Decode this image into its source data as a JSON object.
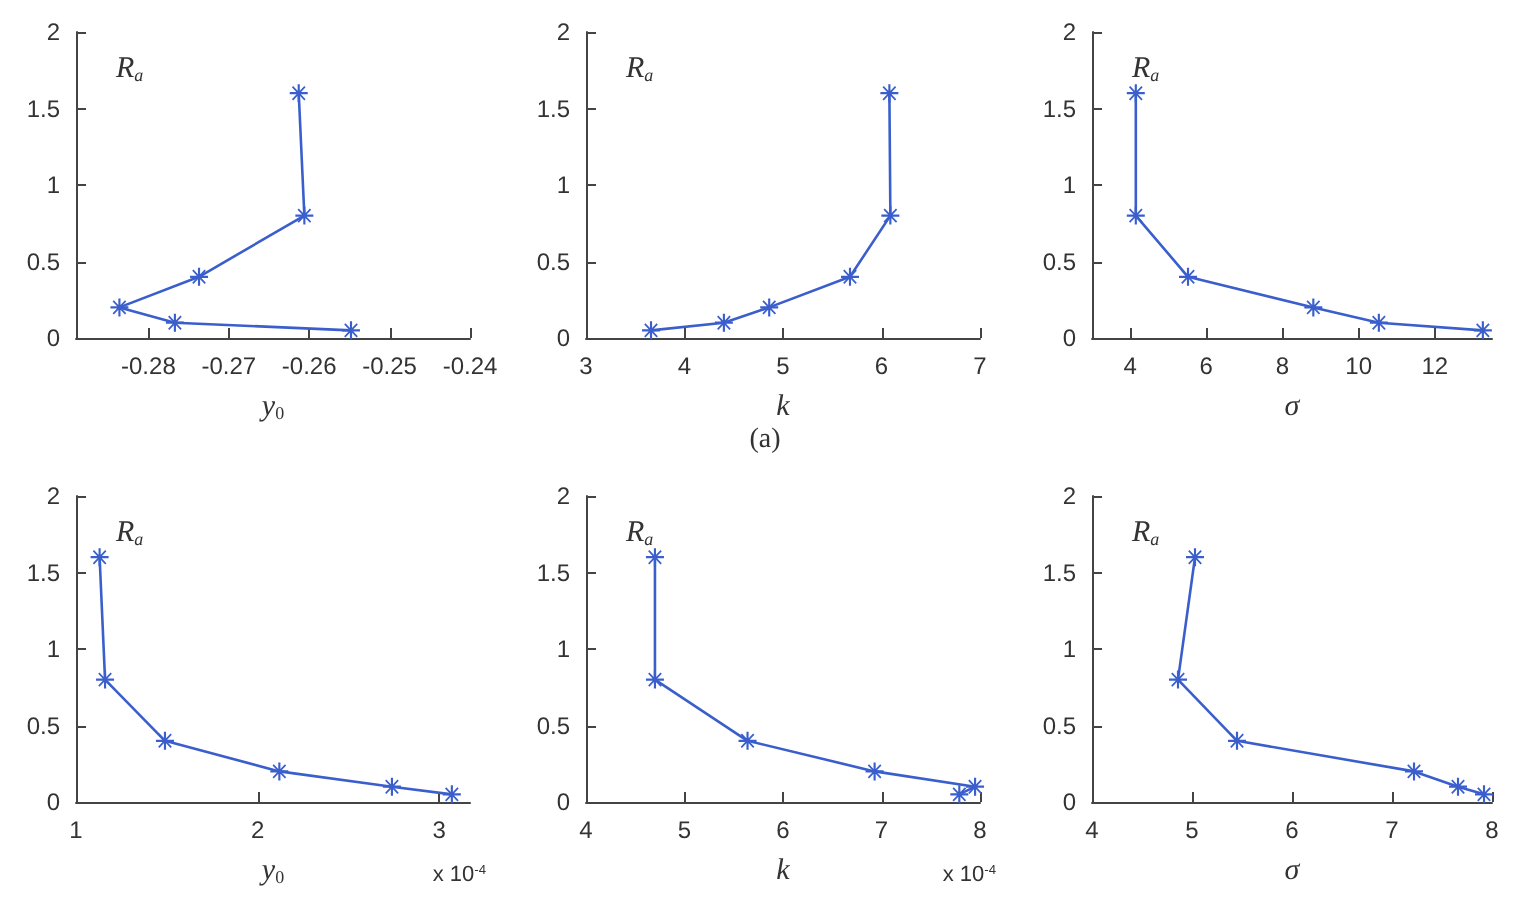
{
  "chart_data": [
    {
      "type": "line",
      "xlabel": "y$_{0}$",
      "ylabel": "R$_{a}$",
      "marker": "star",
      "x": [
        -0.2613,
        -0.2606,
        -0.2737,
        -0.2836,
        -0.2767,
        -0.2548
      ],
      "series": [
        {
          "color": "#3a5fcd",
          "values": [
            1.6,
            0.8,
            0.4,
            0.2,
            0.1,
            0.05
          ]
        }
      ],
      "xlim": [
        -0.289,
        -0.24
      ],
      "xticks": [
        -0.28,
        -0.27,
        -0.26,
        -0.25,
        -0.24
      ],
      "ylim": [
        0,
        2
      ],
      "yticks": [
        0,
        0.5,
        1,
        1.5,
        2
      ]
    },
    {
      "type": "line",
      "xlabel": "k",
      "ylabel": "R$_{a}$",
      "marker": "star",
      "x": [
        6.08,
        6.09,
        5.68,
        4.86,
        4.4,
        3.66
      ],
      "series": [
        {
          "color": "#3a5fcd",
          "values": [
            1.6,
            0.8,
            0.4,
            0.2,
            0.1,
            0.05
          ]
        }
      ],
      "xlim": [
        3,
        7
      ],
      "xticks": [
        3,
        4,
        5,
        6,
        7
      ],
      "ylim": [
        0,
        2
      ],
      "yticks": [
        0,
        0.5,
        1,
        1.5,
        2
      ],
      "annotations": [
        "(a)"
      ]
    },
    {
      "type": "line",
      "xlabel": "σ",
      "ylabel": "R$_{a}$",
      "marker": "star",
      "x": [
        4.15,
        4.15,
        5.52,
        8.81,
        10.53,
        13.26
      ],
      "series": [
        {
          "color": "#3a5fcd",
          "values": [
            1.6,
            0.8,
            0.4,
            0.2,
            0.1,
            0.05
          ]
        }
      ],
      "xlim": [
        3,
        13.5
      ],
      "xticks": [
        4,
        6,
        8,
        10,
        12
      ],
      "ylim": [
        0,
        2
      ],
      "yticks": [
        0,
        0.5,
        1,
        1.5,
        2
      ]
    },
    {
      "type": "line",
      "xlabel": "y$_{0}$",
      "ylabel": "R$_{a}$",
      "marker": "star",
      "x": [
        1.13,
        1.16,
        1.49,
        2.12,
        2.74,
        3.07
      ],
      "series": [
        {
          "color": "#3a5fcd",
          "values": [
            1.6,
            0.8,
            0.4,
            0.2,
            0.1,
            0.05
          ]
        }
      ],
      "xlim": [
        1,
        3.17
      ],
      "xticks": [
        1,
        2,
        3
      ],
      "ylim": [
        0,
        2
      ],
      "yticks": [
        0,
        0.5,
        1,
        1.5,
        2
      ],
      "annotations": [
        "x 10$^{-4}$"
      ]
    },
    {
      "type": "line",
      "xlabel": "k",
      "ylabel": "R$_{a}$",
      "marker": "star",
      "x": [
        4.7,
        4.7,
        5.64,
        6.93,
        7.95,
        7.79
      ],
      "series": [
        {
          "color": "#3a5fcd",
          "values": [
            1.6,
            0.8,
            0.4,
            0.2,
            0.1,
            0.05
          ]
        }
      ],
      "xlim": [
        4,
        8
      ],
      "xticks": [
        4,
        5,
        6,
        7,
        8
      ],
      "ylim": [
        0,
        2
      ],
      "yticks": [
        0,
        0.5,
        1,
        1.5,
        2
      ],
      "annotations": [
        "x 10$^{-4}$"
      ]
    },
    {
      "type": "line",
      "xlabel": "σ",
      "ylabel": "R$_{a}$",
      "marker": "star",
      "x": [
        5.03,
        4.86,
        5.45,
        7.22,
        7.66,
        7.92
      ],
      "series": [
        {
          "color": "#3a5fcd",
          "values": [
            1.6,
            0.8,
            0.4,
            0.2,
            0.1,
            0.05
          ]
        }
      ],
      "xlim": [
        4,
        8
      ],
      "xticks": [
        4,
        5,
        6,
        7,
        8
      ],
      "ylim": [
        0,
        2
      ],
      "yticks": [
        0,
        0.5,
        1,
        1.5,
        2
      ]
    }
  ]
}
